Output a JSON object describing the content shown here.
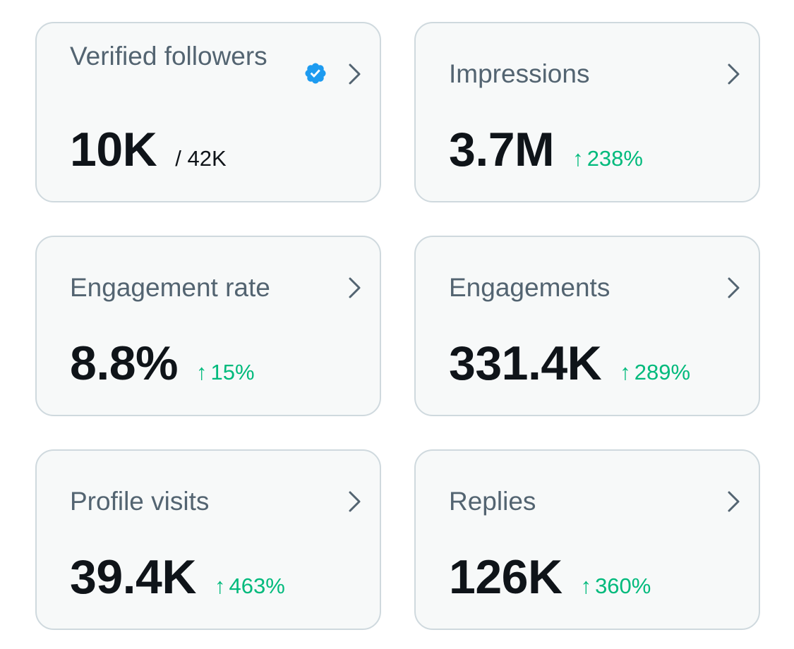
{
  "cards": [
    {
      "title": "Verified followers",
      "value": "10K",
      "sub": "/ 42K",
      "verified_icon": "verified-badge-icon",
      "chevron_icon": "chevron-right-icon"
    },
    {
      "title": "Impressions",
      "value": "3.7M",
      "delta_arrow": "↑",
      "delta": "238%",
      "chevron_icon": "chevron-right-icon"
    },
    {
      "title": "Engagement rate",
      "value": "8.8%",
      "delta_arrow": "↑",
      "delta": "15%",
      "chevron_icon": "chevron-right-icon"
    },
    {
      "title": "Engagements",
      "value": "331.4K",
      "delta_arrow": "↑",
      "delta": "289%",
      "chevron_icon": "chevron-right-icon"
    },
    {
      "title": "Profile visits",
      "value": "39.4K",
      "delta_arrow": "↑",
      "delta": "463%",
      "chevron_icon": "chevron-right-icon"
    },
    {
      "title": "Replies",
      "value": "126K",
      "delta_arrow": "↑",
      "delta": "360%",
      "chevron_icon": "chevron-right-icon"
    }
  ],
  "colors": {
    "card_bg": "#f7f9f9",
    "card_border": "#cfd9de",
    "title": "#536471",
    "value": "#0f1419",
    "positive": "#00ba7c",
    "verified": "#1d9bf0",
    "chevron": "#536471"
  }
}
